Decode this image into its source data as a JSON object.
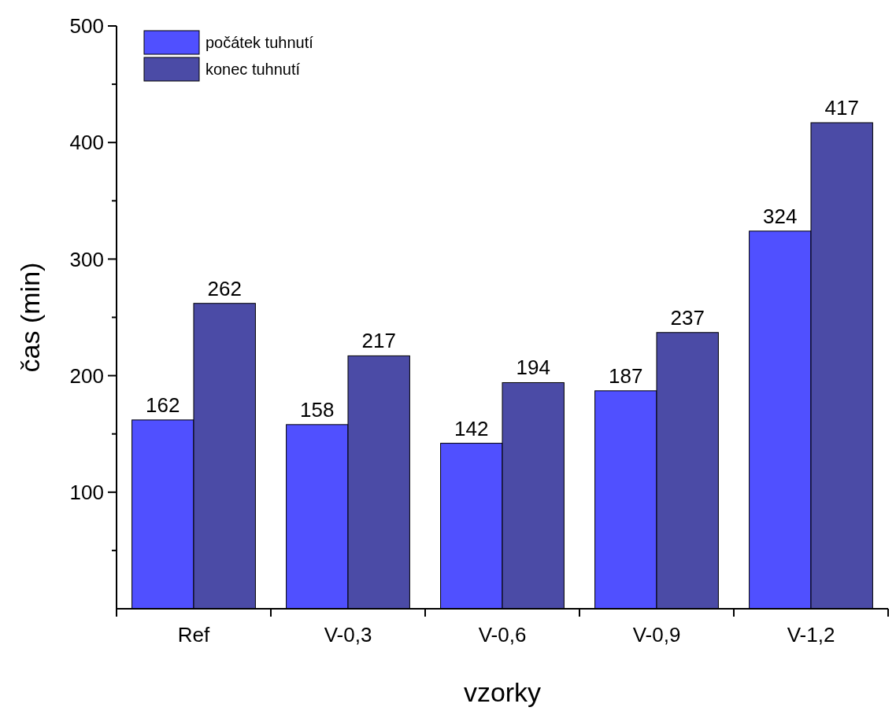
{
  "chart_data": {
    "type": "bar",
    "xlabel": "vzorky",
    "ylabel": "čas (min)",
    "categories": [
      "Ref",
      "V-0,3",
      "V-0,6",
      "V-0,9",
      "V-1,2"
    ],
    "series": [
      {
        "name": "počátek tuhnutí",
        "color": "#5050ff",
        "values": [
          162,
          158,
          142,
          187,
          324
        ]
      },
      {
        "name": "konec tuhnutí",
        "color": "#4b4ba6",
        "values": [
          262,
          217,
          194,
          237,
          417
        ]
      }
    ],
    "ylim": [
      0,
      500
    ],
    "yticks": [
      {
        "value": 50,
        "label": null
      },
      100,
      {
        "value": 150,
        "label": null
      },
      200,
      {
        "value": 250,
        "label": null
      },
      300,
      {
        "value": 350,
        "label": null
      },
      400,
      {
        "value": 450,
        "label": null
      },
      500
    ],
    "data_labels": true,
    "legend": "top left",
    "grid": false
  }
}
